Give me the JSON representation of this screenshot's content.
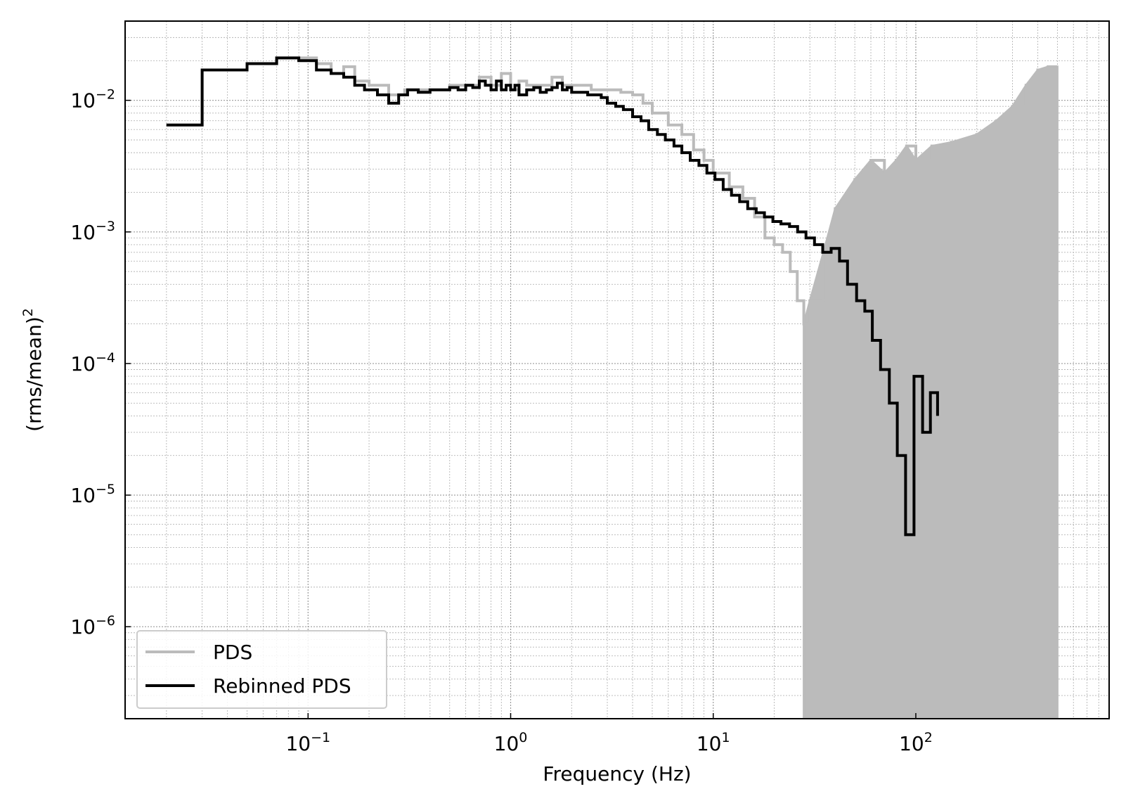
{
  "chart_data": {
    "type": "line",
    "style": "step",
    "xlabel": "Frequency (Hz)",
    "ylabel_base": "(rms/mean)",
    "ylabel_power": "2",
    "xscale": "log",
    "yscale": "log",
    "xlim": [
      0.0125,
      900
    ],
    "ylim": [
      2e-07,
      0.04
    ],
    "grid": true,
    "legend": {
      "placement": "lower-left",
      "entries": [
        "PDS",
        "Rebinned PDS"
      ]
    },
    "x_ticks": [
      {
        "base": "10",
        "exp": "−1",
        "value": 0.1
      },
      {
        "base": "10",
        "exp": "0",
        "value": 1
      },
      {
        "base": "10",
        "exp": "1",
        "value": 10
      },
      {
        "base": "10",
        "exp": "2",
        "value": 100
      }
    ],
    "y_ticks": [
      {
        "base": "10",
        "exp": "−2",
        "value": 0.01
      },
      {
        "base": "10",
        "exp": "−3",
        "value": 0.001
      },
      {
        "base": "10",
        "exp": "−4",
        "value": 0.0001
      },
      {
        "base": "10",
        "exp": "−5",
        "value": 1e-05
      },
      {
        "base": "10",
        "exp": "−6",
        "value": 1e-06
      }
    ],
    "series": [
      {
        "name": "PDS",
        "color": "#bbbbbb",
        "x": [
          0.02,
          0.03,
          0.05,
          0.07,
          0.09,
          0.11,
          0.13,
          0.15,
          0.17,
          0.2,
          0.25,
          0.3,
          0.4,
          0.5,
          0.6,
          0.7,
          0.8,
          0.9,
          1.0,
          1.1,
          1.2,
          1.4,
          1.6,
          1.8,
          2.0,
          2.5,
          3.0,
          3.5,
          4.0,
          4.5,
          5.0,
          6.0,
          7.0,
          8.0,
          9.0,
          10,
          12,
          14,
          16,
          18,
          20,
          22,
          24,
          26,
          28,
          30,
          35,
          40,
          50,
          60,
          70,
          80,
          90,
          100,
          120,
          150,
          200,
          250,
          300,
          350,
          400,
          450,
          500
        ],
        "y": [
          0.0065,
          0.017,
          0.019,
          0.021,
          0.021,
          0.019,
          0.016,
          0.018,
          0.014,
          0.013,
          0.011,
          0.012,
          0.012,
          0.013,
          0.013,
          0.015,
          0.013,
          0.016,
          0.012,
          0.014,
          0.013,
          0.013,
          0.015,
          0.013,
          0.013,
          0.012,
          0.012,
          0.0115,
          0.011,
          0.0095,
          0.008,
          0.0065,
          0.0055,
          0.0042,
          0.0035,
          0.0028,
          0.0022,
          0.0018,
          0.0013,
          0.0009,
          0.0008,
          0.0007,
          0.0005,
          0.0003,
          0.0002,
          0.0003,
          0.0007,
          0.0015,
          0.0025,
          0.0035,
          0.0028,
          0.0035,
          0.0045,
          0.0035,
          0.0045,
          0.0048,
          0.0055,
          0.007,
          0.009,
          0.013,
          0.017,
          0.018,
          0.018
        ],
        "noise_floor_from_hz": 28
      },
      {
        "name": "Rebinned PDS",
        "color": "#000000",
        "x": [
          0.02,
          0.03,
          0.05,
          0.07,
          0.09,
          0.11,
          0.13,
          0.15,
          0.17,
          0.19,
          0.22,
          0.25,
          0.28,
          0.31,
          0.35,
          0.4,
          0.45,
          0.5,
          0.55,
          0.6,
          0.65,
          0.7,
          0.75,
          0.8,
          0.85,
          0.9,
          0.95,
          1.0,
          1.05,
          1.1,
          1.2,
          1.3,
          1.4,
          1.5,
          1.6,
          1.7,
          1.8,
          1.9,
          2.0,
          2.2,
          2.4,
          2.6,
          2.8,
          3.0,
          3.3,
          3.6,
          4.0,
          4.4,
          4.8,
          5.3,
          5.8,
          6.4,
          7.0,
          7.7,
          8.5,
          9.3,
          10.2,
          11.2,
          12.3,
          13.5,
          14.8,
          16.3,
          17.9,
          19.7,
          21.6,
          23.8,
          26.1,
          28.7,
          31.6,
          34.7,
          38.2,
          42,
          46,
          51,
          56,
          61,
          67,
          74,
          81,
          89,
          98,
          108,
          118,
          128
        ],
        "y": [
          0.0065,
          0.017,
          0.019,
          0.021,
          0.02,
          0.017,
          0.016,
          0.015,
          0.013,
          0.012,
          0.011,
          0.0095,
          0.011,
          0.012,
          0.0115,
          0.012,
          0.012,
          0.0125,
          0.012,
          0.013,
          0.0125,
          0.014,
          0.013,
          0.012,
          0.014,
          0.012,
          0.013,
          0.012,
          0.013,
          0.011,
          0.012,
          0.0125,
          0.0115,
          0.012,
          0.0125,
          0.0135,
          0.012,
          0.0125,
          0.0115,
          0.0115,
          0.011,
          0.011,
          0.0105,
          0.0095,
          0.009,
          0.0085,
          0.0075,
          0.007,
          0.006,
          0.0055,
          0.005,
          0.0045,
          0.004,
          0.0035,
          0.0032,
          0.0028,
          0.0025,
          0.0021,
          0.0019,
          0.0017,
          0.0015,
          0.0014,
          0.0013,
          0.0012,
          0.00115,
          0.0011,
          0.001,
          0.0009,
          0.0008,
          0.0007,
          0.00075,
          0.0006,
          0.0004,
          0.0003,
          0.00025,
          0.00015,
          9e-05,
          5e-05,
          2e-05,
          5e-06,
          8e-05,
          3e-05,
          6e-05,
          4e-05
        ]
      }
    ]
  }
}
